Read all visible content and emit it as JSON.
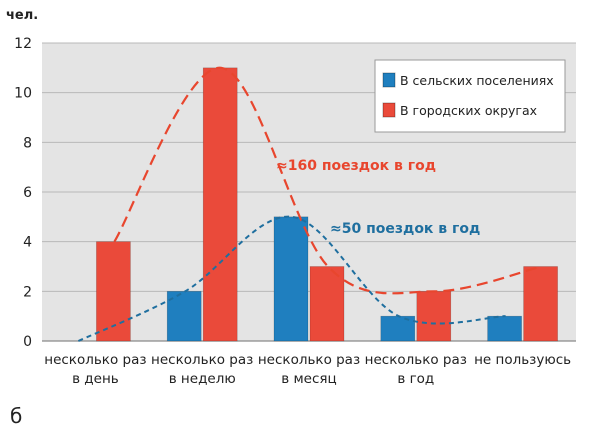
{
  "caption": "б",
  "colors": {
    "rural": "#1f7fbf",
    "urban": "#ea4a3a",
    "rural_trend": "#1f6f9f",
    "urban_trend": "#e8462e",
    "plot_background": "#e4e4e4"
  },
  "chart_data": {
    "type": "bar",
    "title": "",
    "ylabel": "чел.",
    "xlabel": "",
    "ylim": [
      0,
      12
    ],
    "yticks": [
      0,
      2,
      4,
      6,
      8,
      10,
      12
    ],
    "grid": true,
    "legend_position": "top-right",
    "categories": [
      [
        "несколько раз",
        "в день"
      ],
      [
        "несколько раз",
        "в неделю"
      ],
      [
        "несколько раз",
        "в месяц"
      ],
      [
        "несколько раз",
        "в год"
      ],
      [
        "не пользуюсь"
      ]
    ],
    "series": [
      {
        "name": "В сельских поселениях",
        "values": [
          0,
          2,
          5,
          1,
          1
        ]
      },
      {
        "name": "В городских округах",
        "values": [
          4,
          11,
          3,
          2,
          3
        ]
      }
    ],
    "annotations": [
      {
        "text": "≈160 поездок в год",
        "series": "В городских округах"
      },
      {
        "text": "≈50 поездок в год",
        "series": "В сельских поселениях"
      }
    ]
  }
}
